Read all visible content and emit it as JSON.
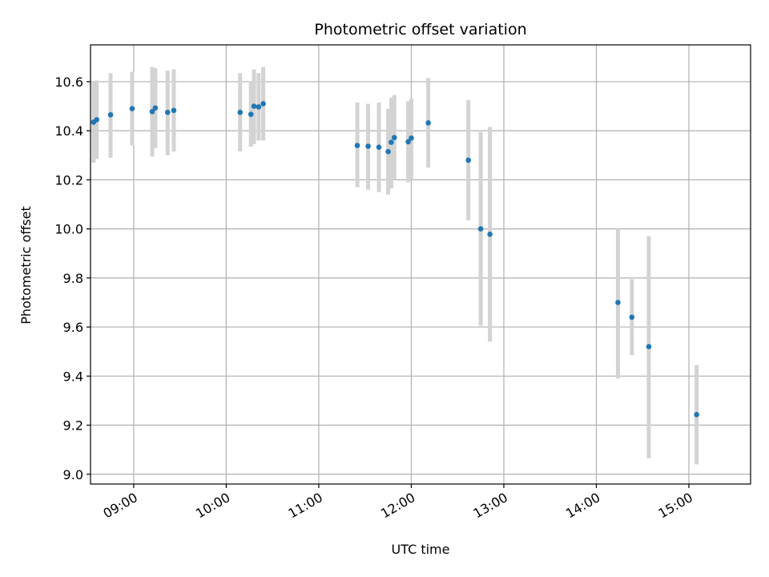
{
  "chart_data": {
    "type": "scatter",
    "title": "Photometric offset variation",
    "xlabel": "UTC time",
    "ylabel": "Photometric offset",
    "x_ticks": [
      "09:00",
      "10:00",
      "11:00",
      "12:00",
      "13:00",
      "14:00",
      "15:00"
    ],
    "y_ticks": [
      "9.0",
      "9.2",
      "9.4",
      "9.6",
      "9.8",
      "10.0",
      "10.2",
      "10.4",
      "10.6"
    ],
    "xlim": [
      "08:32",
      "15:40"
    ],
    "ylim": [
      8.96,
      10.75
    ],
    "grid": true,
    "colors": {
      "point": "#1f77b4",
      "errorbar": "#d3d3d3",
      "grid": "#b0b0b0"
    },
    "points": [
      {
        "x": "08:34",
        "y": 10.435,
        "err_low": 10.27,
        "err_high": 10.6
      },
      {
        "x": "08:36",
        "y": 10.445,
        "err_low": 10.285,
        "err_high": 10.605
      },
      {
        "x": "08:45",
        "y": 10.465,
        "err_low": 10.29,
        "err_high": 10.635
      },
      {
        "x": "08:59",
        "y": 10.49,
        "err_low": 10.34,
        "err_high": 10.64
      },
      {
        "x": "09:12",
        "y": 10.478,
        "err_low": 10.295,
        "err_high": 10.66
      },
      {
        "x": "09:14",
        "y": 10.493,
        "err_low": 10.33,
        "err_high": 10.655
      },
      {
        "x": "09:22",
        "y": 10.475,
        "err_low": 10.3,
        "err_high": 10.645
      },
      {
        "x": "09:26",
        "y": 10.483,
        "err_low": 10.315,
        "err_high": 10.65
      },
      {
        "x": "10:09",
        "y": 10.475,
        "err_low": 10.315,
        "err_high": 10.635
      },
      {
        "x": "10:16",
        "y": 10.467,
        "err_low": 10.335,
        "err_high": 10.6
      },
      {
        "x": "10:18",
        "y": 10.5,
        "err_low": 10.345,
        "err_high": 10.65
      },
      {
        "x": "10:21",
        "y": 10.497,
        "err_low": 10.36,
        "err_high": 10.635
      },
      {
        "x": "10:24",
        "y": 10.51,
        "err_low": 10.36,
        "err_high": 10.66
      },
      {
        "x": "11:25",
        "y": 10.34,
        "err_low": 10.17,
        "err_high": 10.515
      },
      {
        "x": "11:32",
        "y": 10.337,
        "err_low": 10.16,
        "err_high": 10.51
      },
      {
        "x": "11:39",
        "y": 10.333,
        "err_low": 10.15,
        "err_high": 10.515
      },
      {
        "x": "11:45",
        "y": 10.315,
        "err_low": 10.14,
        "err_high": 10.49
      },
      {
        "x": "11:47",
        "y": 10.353,
        "err_low": 10.165,
        "err_high": 10.535
      },
      {
        "x": "11:49",
        "y": 10.372,
        "err_low": 10.2,
        "err_high": 10.545
      },
      {
        "x": "11:58",
        "y": 10.355,
        "err_low": 10.19,
        "err_high": 10.52
      },
      {
        "x": "12:00",
        "y": 10.37,
        "err_low": 10.2,
        "err_high": 10.53
      },
      {
        "x": "12:11",
        "y": 10.432,
        "err_low": 10.25,
        "err_high": 10.615
      },
      {
        "x": "12:37",
        "y": 10.28,
        "err_low": 10.035,
        "err_high": 10.525
      },
      {
        "x": "12:45",
        "y": 10.0,
        "err_low": 9.605,
        "err_high": 10.395
      },
      {
        "x": "12:51",
        "y": 9.978,
        "err_low": 9.54,
        "err_high": 10.415
      },
      {
        "x": "14:14",
        "y": 9.7,
        "err_low": 9.39,
        "err_high": 10.0
      },
      {
        "x": "14:23",
        "y": 9.64,
        "err_low": 9.485,
        "err_high": 9.795
      },
      {
        "x": "14:34",
        "y": 9.52,
        "err_low": 9.065,
        "err_high": 9.97
      },
      {
        "x": "15:05",
        "y": 9.243,
        "err_low": 9.04,
        "err_high": 9.445
      }
    ]
  }
}
